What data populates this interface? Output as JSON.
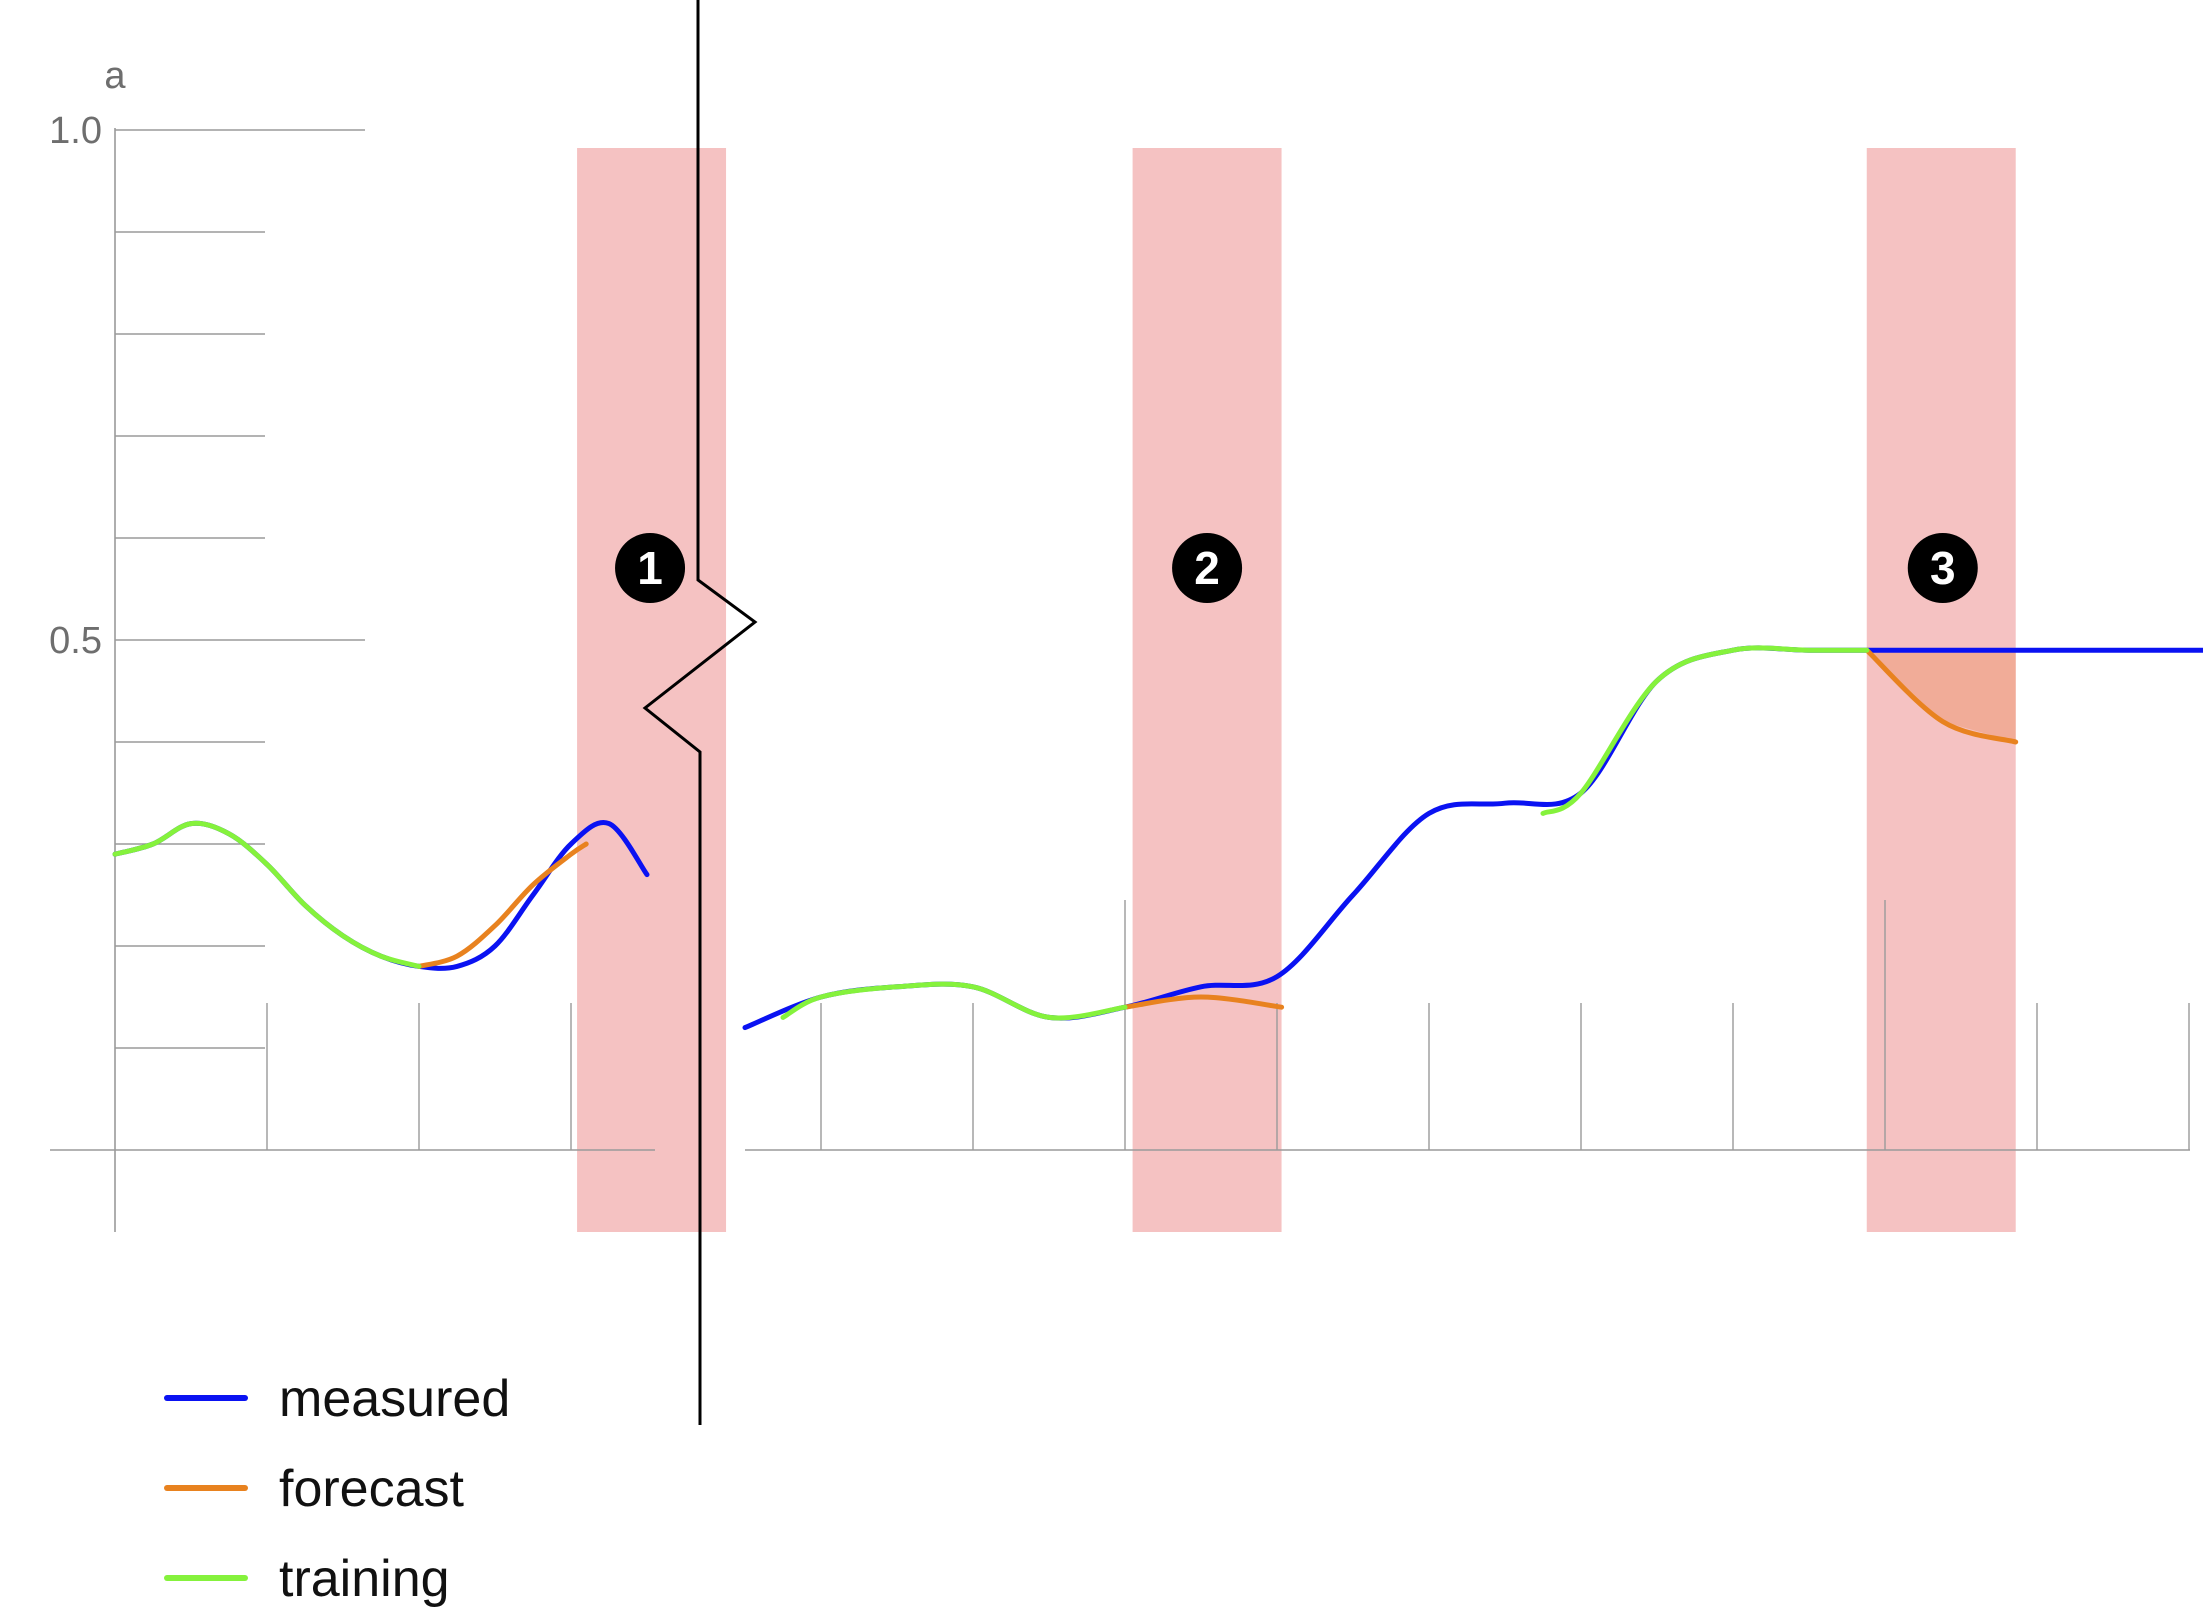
{
  "chart_data": {
    "type": "line",
    "ylabel": "a",
    "ylim": [
      0,
      1.0
    ],
    "y_ticks": [
      0.1,
      0.2,
      0.3,
      0.4,
      0.5,
      0.6,
      0.7,
      0.8,
      0.9,
      1.0
    ],
    "y_tick_labels": [
      {
        "value": 0.5,
        "label": "0.5"
      },
      {
        "value": 1.0,
        "label": "1.0"
      }
    ],
    "axis_break": true,
    "grid": false,
    "legend_placement": "bottom-left",
    "colors": {
      "measured": "#0a12f2",
      "forecast": "#e8821f",
      "training": "#85f23c",
      "forecast_window": "#f5c2c2",
      "forecast_error": "#f0a890",
      "marker_fill": "#000000"
    },
    "legend": [
      {
        "key": "measured",
        "label": "measured"
      },
      {
        "key": "forecast",
        "label": "forecast"
      },
      {
        "key": "training",
        "label": "training"
      }
    ],
    "markers": [
      {
        "label": "1",
        "x": 3.52
      },
      {
        "label": "2",
        "x": 12.54
      },
      {
        "label": "3",
        "x": 17.38
      }
    ],
    "forecast_windows": [
      {
        "x": [
          3.04,
          4.02
        ]
      },
      {
        "x": [
          12.05,
          13.03
        ]
      },
      {
        "x": [
          16.88,
          17.86
        ]
      }
    ],
    "panels": [
      {
        "x_range": [
          0,
          3.5
        ],
        "x_ticks": [
          1,
          2,
          3
        ],
        "series": [
          {
            "key": "measured",
            "x": [
              0.0,
              0.25,
              0.5,
              0.75,
              1.0,
              1.25,
              1.5,
              1.75,
              2.0,
              2.25,
              2.5,
              2.75,
              3.0,
              3.25,
              3.5
            ],
            "y": [
              0.29,
              0.3,
              0.32,
              0.31,
              0.28,
              0.24,
              0.21,
              0.19,
              0.18,
              0.18,
              0.2,
              0.25,
              0.3,
              0.32,
              0.27
            ]
          },
          {
            "key": "training",
            "x": [
              0.0,
              0.25,
              0.5,
              0.75,
              1.0,
              1.25,
              1.5,
              1.75,
              2.0
            ],
            "y": [
              0.29,
              0.3,
              0.32,
              0.31,
              0.28,
              0.24,
              0.21,
              0.19,
              0.18
            ]
          },
          {
            "key": "forecast",
            "x": [
              2.0,
              2.25,
              2.5,
              2.75,
              3.0,
              3.1
            ],
            "y": [
              0.18,
              0.19,
              0.22,
              0.26,
              0.29,
              0.3
            ]
          }
        ]
      },
      {
        "x_range": [
          9.5,
          19.6
        ],
        "x_ticks": [
          10,
          11,
          12,
          13,
          14,
          15,
          16,
          17,
          18,
          19
        ],
        "series": [
          {
            "key": "measured",
            "x": [
              9.5,
              10.0,
              10.5,
              11.0,
              11.5,
              12.0,
              12.5,
              13.0,
              13.5,
              14.0,
              14.5,
              15.0,
              15.5,
              16.0,
              16.5,
              17.0,
              17.5,
              18.0,
              18.5,
              19.0,
              19.6
            ],
            "y": [
              0.12,
              0.15,
              0.16,
              0.16,
              0.13,
              0.14,
              0.16,
              0.17,
              0.25,
              0.33,
              0.34,
              0.35,
              0.46,
              0.49,
              0.49,
              0.49,
              0.49,
              0.49,
              0.49,
              0.49,
              0.49
            ]
          },
          {
            "key": "training",
            "x": [
              9.75,
              10.0,
              10.5,
              11.0,
              11.5,
              12.0
            ],
            "y": [
              0.13,
              0.15,
              0.16,
              0.16,
              0.13,
              0.14
            ]
          },
          {
            "key": "training",
            "x": [
              14.75,
              15.0,
              15.5,
              16.0,
              16.5,
              16.88
            ],
            "y": [
              0.33,
              0.35,
              0.46,
              0.49,
              0.49,
              0.49
            ]
          },
          {
            "key": "forecast",
            "x": [
              12.0,
              12.5,
              13.03
            ],
            "y": [
              0.14,
              0.15,
              0.14
            ]
          },
          {
            "key": "forecast",
            "x": [
              16.88,
              17.38,
              17.86
            ],
            "y": [
              0.49,
              0.42,
              0.4
            ]
          }
        ]
      }
    ]
  }
}
